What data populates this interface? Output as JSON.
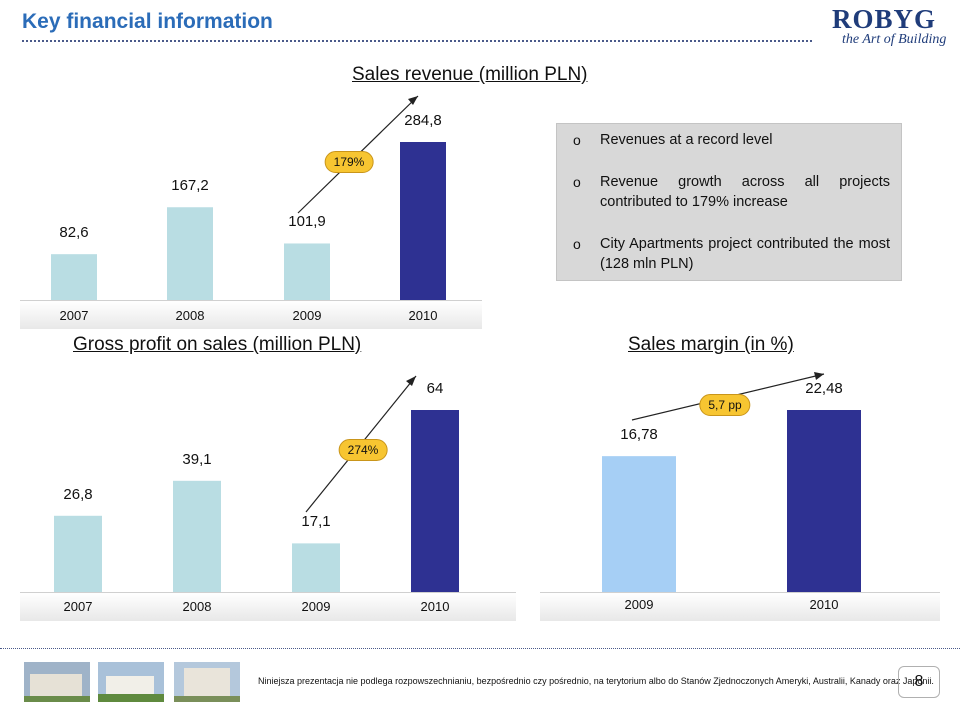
{
  "slide": {
    "title": "Key financial information",
    "page_number": "8"
  },
  "logo": {
    "name": "ROBYG",
    "tagline": "the Art of Building"
  },
  "info_box": {
    "bullet_char": "o",
    "bullets": [
      "Revenues at a record level",
      "Revenue growth across all projects contributed to 179% increase",
      "City Apartments project contributed the most (128 mln PLN)"
    ]
  },
  "footer": {
    "disclaimer": "Niniejsza prezentacja nie podlega rozpowszechnianiu, bezpośrednio czy pośrednio, na terytorium albo do Stanów Zjednoczonych Ameryki, Australii, Kanady oraz Japonii."
  },
  "colors": {
    "light_bar": "#b9dde3",
    "dark_bar": "#2e3192",
    "margin_light_bar": "#a6cff5",
    "badge": "#f7c531",
    "title": "#2b6cb8"
  },
  "chart_data": [
    {
      "type": "bar",
      "title": "Sales revenue (million PLN)",
      "categories": [
        "2007",
        "2008",
        "2009",
        "2010"
      ],
      "values": [
        82.6,
        167.2,
        101.9,
        284.8
      ],
      "labels": [
        "82,6",
        "167,2",
        "101,9",
        "284,8"
      ],
      "annotation": "179%",
      "grid": false
    },
    {
      "type": "bar",
      "title": "Gross profit on sales (million PLN)",
      "categories": [
        "2007",
        "2008",
        "2009",
        "2010"
      ],
      "values": [
        26.8,
        39.1,
        17.1,
        64
      ],
      "labels": [
        "26,8",
        "39,1",
        "17,1",
        "64"
      ],
      "annotation": "274%",
      "grid": false
    },
    {
      "type": "bar",
      "title": "Sales margin (in %)",
      "categories": [
        "2009",
        "2010"
      ],
      "values": [
        16.78,
        22.48
      ],
      "labels": [
        "16,78",
        "22,48"
      ],
      "annotation": "5,7 pp",
      "grid": false
    }
  ]
}
